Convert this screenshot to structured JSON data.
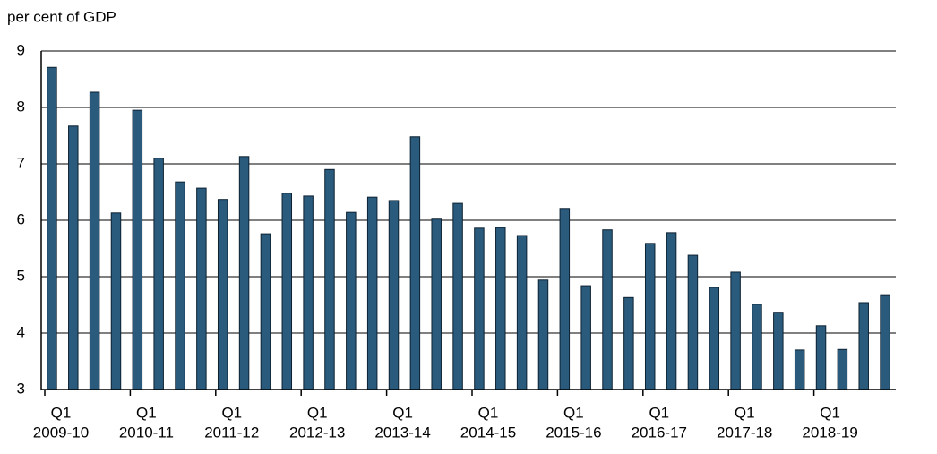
{
  "chart_data": {
    "type": "bar",
    "y_label": "per cent of GDP",
    "categories": [
      "Q1",
      null,
      null,
      null,
      "Q1",
      null,
      null,
      null,
      "Q1",
      null,
      null,
      null,
      "Q1",
      null,
      null,
      null,
      "Q1",
      null,
      null,
      null,
      "Q1",
      null,
      null,
      null,
      "Q1",
      null,
      null,
      null,
      "Q1",
      null,
      null,
      null,
      "Q1",
      null,
      null,
      null,
      "Q1",
      null,
      null,
      null
    ],
    "groups": [
      "2009-10",
      "2010-11",
      "2011-12",
      "2012-13",
      "2013-14",
      "2014-15",
      "2015-16",
      "2016-17",
      "2017-18",
      "2018-19"
    ],
    "values": [
      8.71,
      7.67,
      8.27,
      6.13,
      7.95,
      7.1,
      6.68,
      6.57,
      6.37,
      7.13,
      5.76,
      6.48,
      6.43,
      6.9,
      6.14,
      6.41,
      6.35,
      7.48,
      6.02,
      6.3,
      5.86,
      5.87,
      5.73,
      4.94,
      6.21,
      4.84,
      5.83,
      4.63,
      5.59,
      5.78,
      5.38,
      4.81,
      5.08,
      4.51,
      4.37,
      3.7,
      4.13,
      3.71,
      4.54,
      4.68
    ],
    "color": "#2a5a7c",
    "ylim": [
      3,
      9
    ],
    "yticks": [
      3,
      4,
      5,
      6,
      7,
      8,
      9
    ],
    "grid": true
  }
}
